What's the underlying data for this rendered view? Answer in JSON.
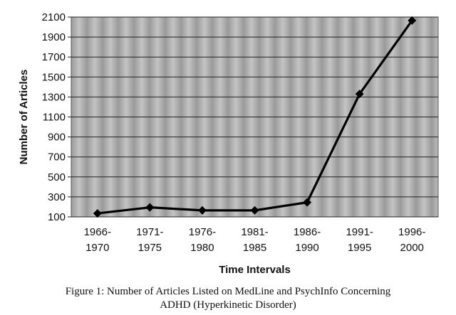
{
  "chart_data": {
    "type": "line",
    "categories": [
      "1966-1970",
      "1971-1975",
      "1976-1980",
      "1981-1985",
      "1986-1990",
      "1991-1995",
      "1996-2000"
    ],
    "category_lines": [
      [
        "1966-",
        "1970"
      ],
      [
        "1971-",
        "1975"
      ],
      [
        "1976-",
        "1980"
      ],
      [
        "1981-",
        "1985"
      ],
      [
        "1986-",
        "1990"
      ],
      [
        "1991-",
        "1995"
      ],
      [
        "1996-",
        "2000"
      ]
    ],
    "values": [
      135,
      195,
      165,
      165,
      245,
      1330,
      2065
    ],
    "xlabel": "Time Intervals",
    "ylabel": "Number of Articles",
    "ylim": [
      100,
      2100
    ],
    "yticks": [
      100,
      300,
      500,
      700,
      900,
      1100,
      1300,
      1500,
      1700,
      1900,
      2100
    ],
    "grid": true,
    "marker": "diamond",
    "line_color": "#000000"
  },
  "caption": {
    "line1": "Figure 1: Number of Articles Listed on MedLine and PsychInfo Concerning",
    "line2": "ADHD (Hyperkinetic Disorder)"
  }
}
